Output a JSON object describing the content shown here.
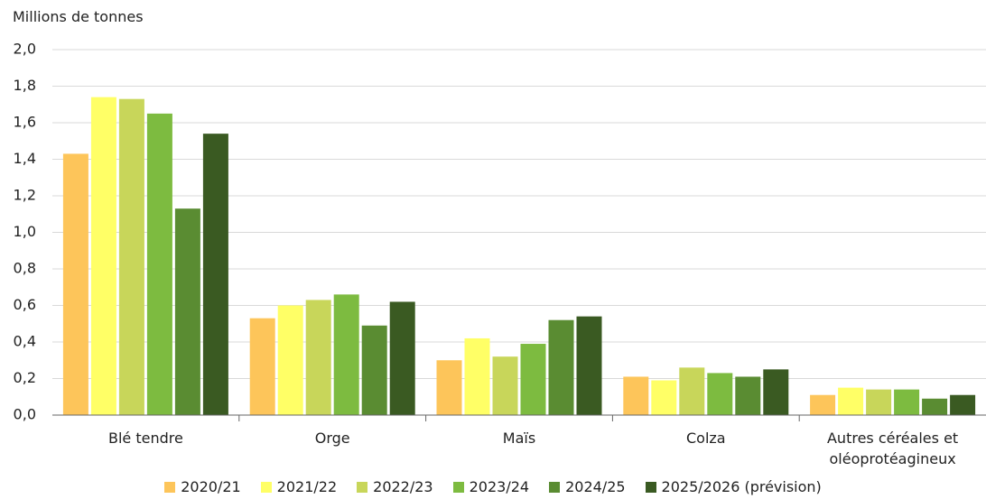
{
  "chart_data": {
    "type": "bar",
    "y_label": "Millions de tonnes",
    "categories": [
      "Blé tendre",
      "Orge",
      "Maïs",
      "Colza",
      "Autres céréales et oléoprotéagineux"
    ],
    "series": [
      {
        "name": "2020/21",
        "color": "#fdc55a",
        "values": [
          1.43,
          0.53,
          0.3,
          0.21,
          0.11
        ]
      },
      {
        "name": "2021/22",
        "color": "#ffff66",
        "values": [
          1.74,
          0.6,
          0.42,
          0.19,
          0.15
        ]
      },
      {
        "name": "2022/23",
        "color": "#c8d65a",
        "values": [
          1.73,
          0.63,
          0.32,
          0.26,
          0.14
        ]
      },
      {
        "name": "2023/24",
        "color": "#7dbb40",
        "values": [
          1.65,
          0.66,
          0.39,
          0.23,
          0.14
        ]
      },
      {
        "name": "2024/25",
        "color": "#5a8c32",
        "values": [
          1.13,
          0.49,
          0.52,
          0.21,
          0.09
        ]
      },
      {
        "name": "2025/2026 (prévision)",
        "color": "#3a5a22",
        "values": [
          1.54,
          0.62,
          0.54,
          0.25,
          0.11
        ]
      }
    ],
    "ylim": [
      0,
      2
    ],
    "yticks": [
      {
        "value": 0,
        "label": "0,0"
      },
      {
        "value": 0.2,
        "label": "0,2"
      },
      {
        "value": 0.4,
        "label": "0,4"
      },
      {
        "value": 0.6,
        "label": "0,6"
      },
      {
        "value": 0.8,
        "label": "0,8"
      },
      {
        "value": 1,
        "label": "1,0"
      },
      {
        "value": 1.2,
        "label": "1,2"
      },
      {
        "value": 1.4,
        "label": "1,4"
      },
      {
        "value": 1.6,
        "label": "1,6"
      },
      {
        "value": 1.8,
        "label": "1,8"
      },
      {
        "value": 2,
        "label": "2,0"
      }
    ],
    "grid": true,
    "legend": "bottom"
  }
}
